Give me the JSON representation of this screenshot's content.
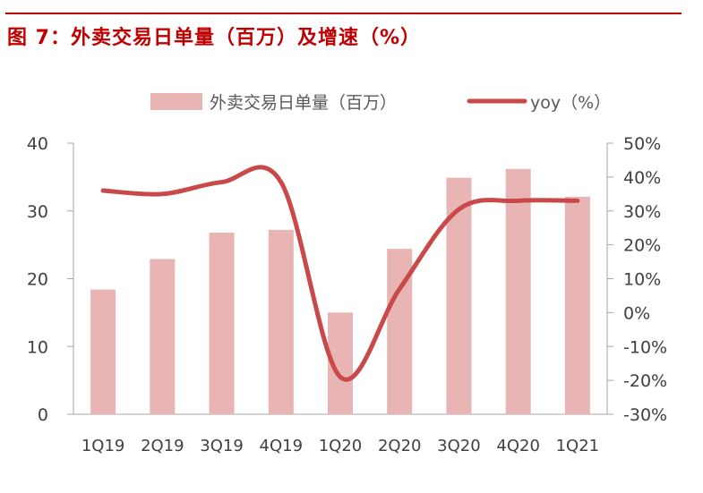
{
  "figure_title": "图 7：外卖交易日单量（百万）及增速（%）",
  "colors": {
    "title": "#c00000",
    "bar": "#e8b4b4",
    "line": "#c9484a",
    "axis": "#a6a6a6",
    "text": "#404040"
  },
  "chart_data": {
    "type": "bar+line",
    "categories": [
      "1Q19",
      "2Q19",
      "3Q19",
      "4Q19",
      "1Q20",
      "2Q20",
      "3Q20",
      "4Q20",
      "1Q21"
    ],
    "series": [
      {
        "name": "外卖交易日单量（百万）",
        "type": "bar",
        "axis": "left",
        "values": [
          18.4,
          22.9,
          26.8,
          27.2,
          15.0,
          24.4,
          34.9,
          36.2,
          32.1
        ]
      },
      {
        "name": "yoy（%）",
        "type": "line",
        "axis": "right",
        "values": [
          36,
          35,
          38.5,
          38.5,
          -19,
          7,
          30.5,
          33,
          33
        ]
      }
    ],
    "left_axis": {
      "ylim": [
        0,
        40
      ],
      "ticks": [
        "0",
        "10",
        "20",
        "30",
        "40"
      ]
    },
    "right_axis": {
      "ylim": [
        -30,
        50
      ],
      "ticks": [
        "-30%",
        "-20%",
        "-10%",
        "0%",
        "10%",
        "20%",
        "30%",
        "40%",
        "50%"
      ]
    },
    "legend_position": "top",
    "grid": false
  }
}
